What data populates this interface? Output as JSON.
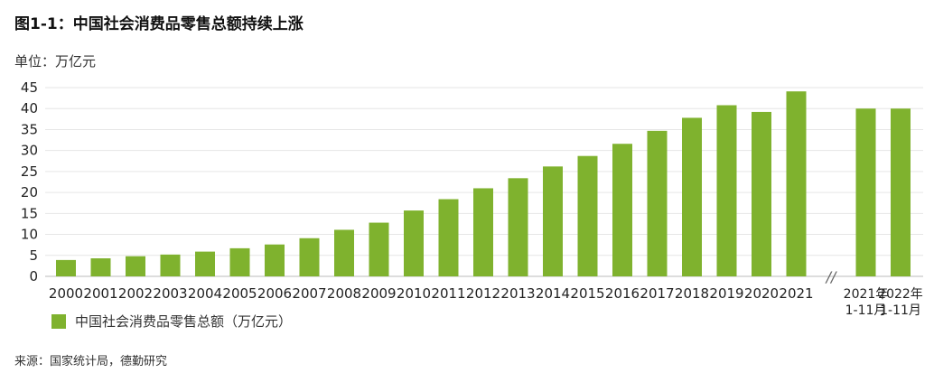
{
  "title": "图1-1：中国社会消费品零售总额持续上涨",
  "unit_label": "单位：万亿元",
  "source": "来源：国家统计局，德勤研究",
  "colors": {
    "bar": "#7FB22E",
    "grid": "#e6e6e6",
    "axis": "#bbbbbb",
    "text": "#222222"
  },
  "chart_data": {
    "type": "bar",
    "title": "图1-1：中国社会消费品零售总额持续上涨",
    "ylabel": "单位：万亿元",
    "ylim": [
      0,
      45
    ],
    "yticks": [
      0,
      5,
      10,
      15,
      20,
      25,
      30,
      35,
      40,
      45
    ],
    "grid": true,
    "legend_position": "bottom-left",
    "axis_break_after": "2021",
    "axis_break_symbol": "//",
    "categories": [
      "2000",
      "2001",
      "2002",
      "2003",
      "2004",
      "2005",
      "2006",
      "2007",
      "2008",
      "2009",
      "2010",
      "2011",
      "2012",
      "2013",
      "2014",
      "2015",
      "2016",
      "2017",
      "2018",
      "2019",
      "2020",
      "2021",
      "2021年\n1-11月",
      "2022年\n1-11月"
    ],
    "series": [
      {
        "name": "中国社会消费品零售总额（万亿元）",
        "values": [
          3.9,
          4.3,
          4.8,
          5.2,
          5.9,
          6.7,
          7.6,
          9.1,
          11.1,
          12.8,
          15.7,
          18.4,
          21.0,
          23.4,
          26.2,
          28.7,
          31.6,
          34.7,
          37.8,
          40.8,
          39.2,
          44.1,
          40.0,
          40.0
        ]
      }
    ]
  }
}
